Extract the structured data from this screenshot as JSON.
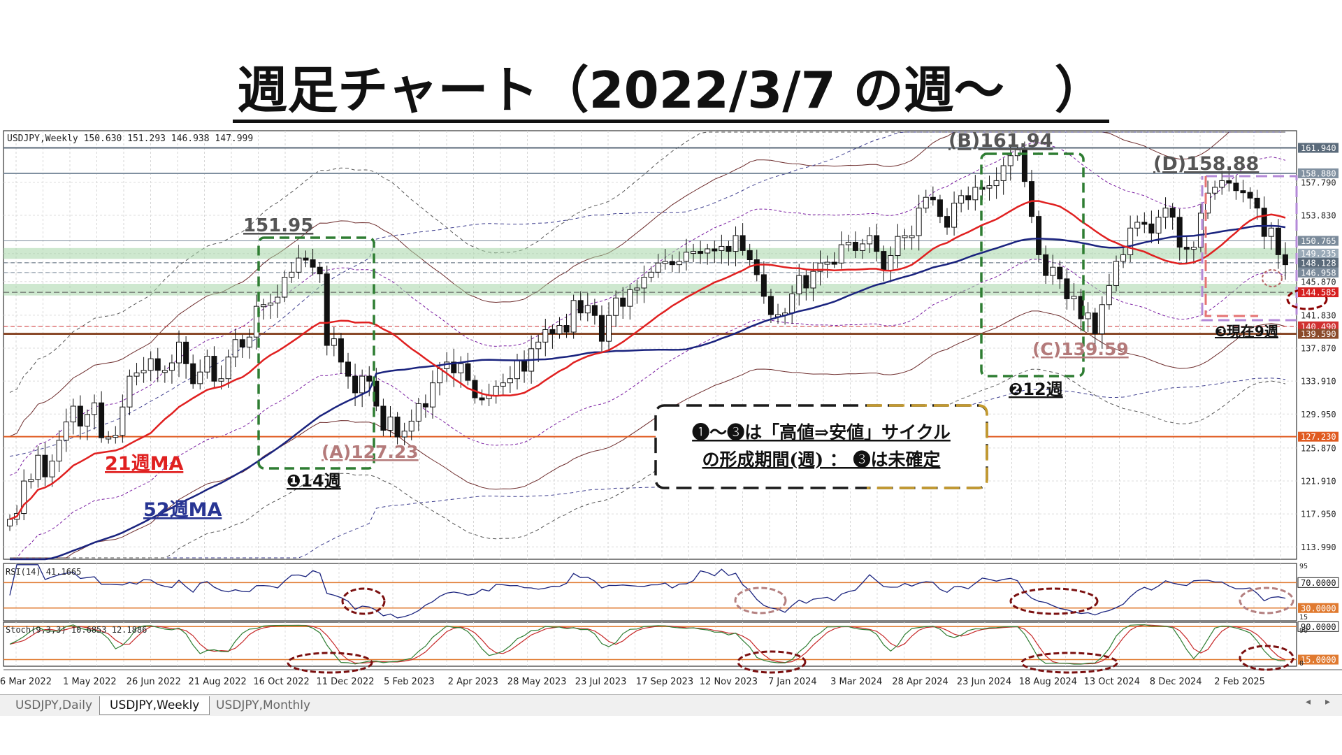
{
  "page": {
    "title": "週足チャート（2022/3/7 の週～　）"
  },
  "chart_data": {
    "type": "candlestick",
    "symbol_header": "USDJPY,Weekly  150.630 151.293 146.938 147.999",
    "ylim": [
      112.5,
      164.0
    ],
    "y_ticks": [
      "161.940",
      "158.880",
      "157.790",
      "153.830",
      "150.765",
      "149.235",
      "148.128",
      "146.958",
      "145.870",
      "144.585",
      "141.830",
      "140.490",
      "139.590",
      "137.870",
      "133.910",
      "129.950",
      "127.230",
      "125.870",
      "121.910",
      "117.950",
      "113.990"
    ],
    "highlighted_ticks": {
      "161.940": "#5a6a7a",
      "158.880": "#8090a0",
      "150.765": "#7a8a9a",
      "149.235": "#9aaab8",
      "148.128": "#5a6a7a",
      "146.958": "#7a8a9a",
      "144.585": "#d62020",
      "140.490": "#d03030",
      "139.590": "#8a4a2a",
      "127.230": "#e05a20"
    },
    "x_labels": [
      "6 Mar 2022",
      "1 May 2022",
      "26 Jun 2022",
      "21 Aug 2022",
      "16 Oct 2022",
      "11 Dec 2022",
      "5 Feb 2023",
      "2 Apr 2023",
      "28 May 2023",
      "23 Jul 2023",
      "17 Sep 2023",
      "12 Nov 2023",
      "7 Jan 2024",
      "3 Mar 2024",
      "28 Apr 2024",
      "23 Jun 2024",
      "18 Aug 2024",
      "13 Oct 2024",
      "8 Dec 2024",
      "2 Feb 2025"
    ],
    "closes": [
      117.3,
      118.0,
      121.9,
      122.1,
      125.0,
      122.4,
      124.3,
      126.8,
      129.0,
      130.9,
      128.5,
      129.9,
      131.3,
      127.1,
      127.2,
      127.4,
      130.8,
      134.5,
      134.9,
      135.2,
      136.6,
      135.2,
      135.2,
      136.1,
      138.6,
      136.0,
      133.6,
      135.0,
      136.9,
      133.9,
      134.2,
      136.8,
      138.9,
      138.0,
      139.2,
      142.9,
      143.1,
      143.3,
      144.0,
      146.4,
      147.0,
      148.7,
      148.5,
      147.6,
      146.8,
      138.2,
      139.0,
      136.2,
      134.5,
      132.5,
      134.5,
      133.9,
      130.9,
      128.0,
      129.6,
      127.2,
      127.9,
      129.1,
      131.2,
      130.8,
      133.7,
      135.4,
      136.2,
      134.9,
      136.0,
      134.0,
      131.9,
      131.8,
      132.2,
      133.3,
      133.7,
      134.2,
      136.4,
      135.1,
      137.8,
      138.6,
      140.1,
      139.6,
      140.6,
      139.8,
      143.6,
      142.1,
      143.0,
      141.8,
      138.7,
      141.8,
      143.9,
      142.9,
      144.9,
      145.1,
      146.4,
      147.0,
      148.1,
      148.3,
      147.9,
      148.3,
      149.4,
      149.5,
      149.3,
      149.8,
      149.6,
      150.1,
      149.5,
      151.4,
      149.6,
      148.5,
      146.7,
      144.1,
      141.9,
      141.9,
      142.1,
      144.4,
      146.6,
      145.1,
      147.1,
      148.1,
      148.2,
      148.1,
      150.3,
      150.6,
      149.6,
      150.4,
      151.4,
      149.5,
      147.2,
      149.0,
      151.3,
      151.4,
      151.4,
      154.7,
      156.0,
      155.7,
      153.7,
      152.4,
      155.3,
      156.2,
      155.7,
      157.2,
      157.1,
      157.4,
      158.0,
      159.8,
      161.0,
      161.7,
      157.9,
      153.7,
      149.1,
      146.6,
      147.6,
      146.2,
      143.8,
      144.1,
      141.4,
      142.1,
      139.6,
      143.1,
      145.4,
      148.3,
      149.1,
      152.3,
      153.0,
      152.8,
      151.7,
      153.6,
      154.7,
      153.6,
      150.0,
      149.8,
      150.0,
      154.1,
      156.5,
      157.2,
      158.0,
      157.7,
      156.8,
      156.6,
      155.9,
      154.7,
      151.3,
      152.3,
      149.1,
      147.9
    ]
  },
  "annotations": {
    "peak_a": "151.95",
    "low_a": "(A)127.23",
    "peak_b": "(B)161.94",
    "low_c": "(C)139.59",
    "peak_d": "(D)158.88",
    "cycle1": "❶14週",
    "cycle2": "❷12週",
    "cycle3": "❸現在9週",
    "ma21": "21週MA",
    "ma52": "52週MA",
    "note_line1": "❶～❸は「高値⇒安値」サイクル",
    "note_line2": "の形成期間(週) ： ❸は未確定"
  },
  "indicators": {
    "rsi": {
      "label": "RSI(14) 41.1665",
      "levels": [
        "70.0000",
        "30.0000"
      ],
      "scale_labels": [
        "95",
        "15"
      ]
    },
    "stoch": {
      "label": "Stoch(9,3,3) 10.6853 12.1886",
      "levels": [
        "90.0000",
        "15.0000"
      ],
      "scale_labels": [
        "90",
        "0"
      ]
    }
  },
  "tabs": [
    "USDJPY,Daily",
    "USDJPY,Weekly",
    "USDJPY,Monthly"
  ],
  "colors": {
    "ma21": "#e02020",
    "ma52": "#1a237e",
    "cycle_box": "#2e7d32",
    "rsi": "#1a237e",
    "stoch_main": "#2e7d32",
    "stoch_signal": "#c62828"
  }
}
